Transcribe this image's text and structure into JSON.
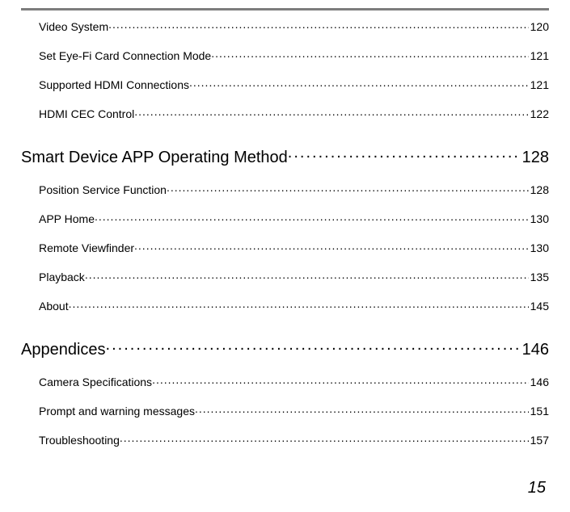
{
  "toc": {
    "preItems": [
      {
        "label": "Video System",
        "page": "120"
      },
      {
        "label": "Set Eye-Fi Card Connection Mode",
        "page": "121"
      },
      {
        "label": "Supported HDMI Connections",
        "page": "121"
      },
      {
        "label": "HDMI CEC Control",
        "page": "122"
      }
    ],
    "sections": [
      {
        "heading": {
          "label": "Smart Device APP Operating Method",
          "page": "128"
        },
        "items": [
          {
            "label": "Position Service Function",
            "page": "128"
          },
          {
            "label": "APP Home",
            "page": "130"
          },
          {
            "label": "Remote Viewfinder",
            "page": "130"
          },
          {
            "label": "Playback",
            "page": "135"
          },
          {
            "label": "About",
            "page": "145"
          }
        ]
      },
      {
        "heading": {
          "label": "Appendices",
          "page": "146"
        },
        "items": [
          {
            "label": "Camera Specifications",
            "page": "146"
          },
          {
            "label": "Prompt and warning messages",
            "page": "151"
          },
          {
            "label": "Troubleshooting",
            "page": "157"
          }
        ]
      }
    ]
  },
  "pageNumber": "15"
}
